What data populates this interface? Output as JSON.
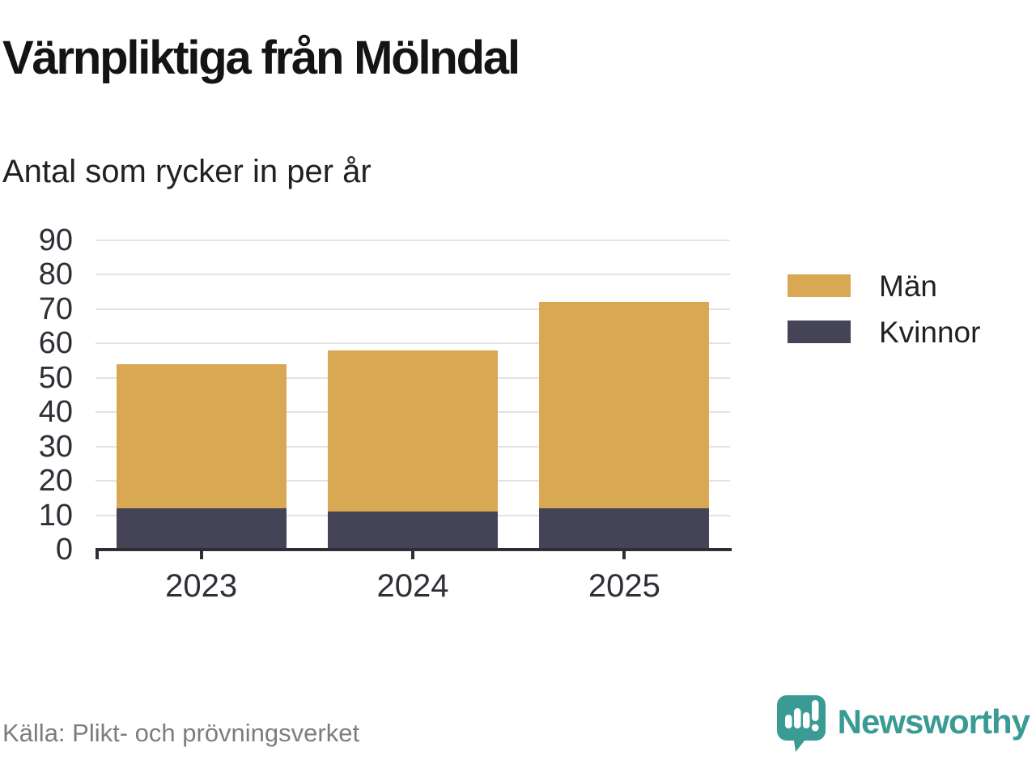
{
  "title": "Värnpliktiga från Mölndal",
  "subtitle": "Antal som rycker in per år",
  "source": "Källa: Plikt- och prövningsverket",
  "brand": {
    "name": "Newsworthy",
    "color": "#3a9a94",
    "icon": "newsworthy-speech-bubble-chart-icon"
  },
  "colors": {
    "men": "#d9a852",
    "women": "#454356",
    "grid": "#e3e3e3",
    "axis": "#2e2d38",
    "tick_text": "#2f2f38",
    "source_text": "#7d7d7d"
  },
  "legend": [
    {
      "label": "Män",
      "color": "#d9a852"
    },
    {
      "label": "Kvinnor",
      "color": "#454356"
    }
  ],
  "chart_data": {
    "type": "bar",
    "stacked": true,
    "title": "Värnpliktiga från Mölndal",
    "subtitle": "Antal som rycker in per år",
    "categories": [
      "2023",
      "2024",
      "2025"
    ],
    "series": [
      {
        "name": "Kvinnor",
        "color": "#454356",
        "values": [
          12,
          11,
          12
        ]
      },
      {
        "name": "Män",
        "color": "#d9a852",
        "values": [
          42,
          47,
          60
        ]
      }
    ],
    "stacked_totals": [
      54,
      58,
      72
    ],
    "xlabel": "",
    "ylabel": "",
    "ylim": [
      0,
      90
    ],
    "ytick_interval": 10,
    "yticks": [
      0,
      10,
      20,
      30,
      40,
      50,
      60,
      70,
      80,
      90
    ],
    "grid": true,
    "legend_position": "right",
    "legend_order": [
      "Män",
      "Kvinnor"
    ]
  }
}
